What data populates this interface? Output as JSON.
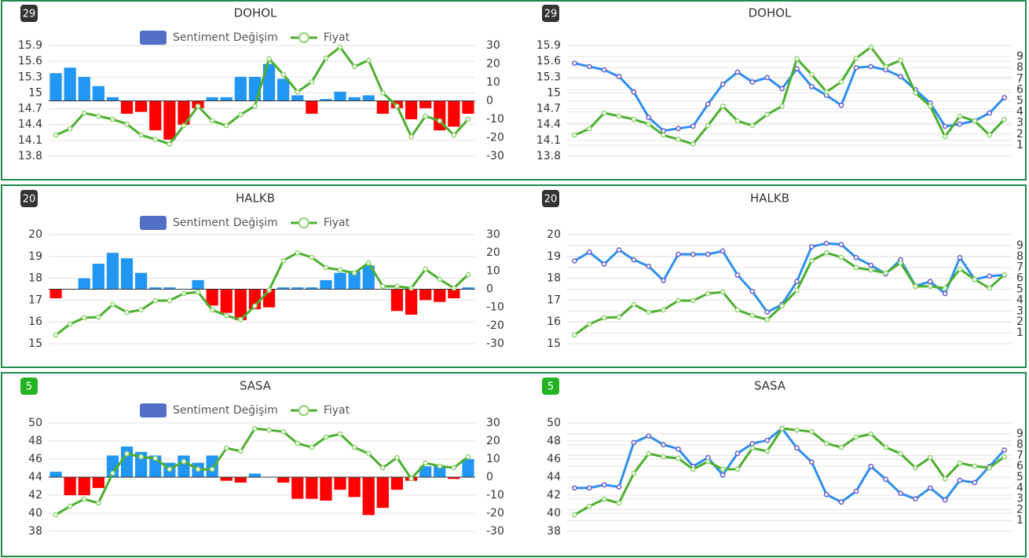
{
  "chart_data": [
    {
      "type": "bar",
      "badge": "29",
      "badge_color": "#333333",
      "title": "DOHOL",
      "ylim": [
        13.8,
        15.9
      ],
      "yticks": [
        13.8,
        14.1,
        14.4,
        14.7,
        15,
        15.3,
        15.6,
        15.9
      ],
      "y2lim": [
        -30,
        30
      ],
      "y2ticks": [
        -30,
        -20,
        -10,
        0,
        10,
        20,
        30
      ],
      "grid": true,
      "legend": "top",
      "series": [
        {
          "name": "Sentiment Değişim",
          "type": "bar",
          "axis": "y2",
          "color": "#5470c6",
          "positive_color": "#2196f3",
          "negative_color": "#ff0000",
          "values": [
            15,
            18,
            13,
            8,
            2,
            -7,
            -6,
            -16,
            -21,
            -13,
            -4,
            2,
            2,
            13,
            13,
            20,
            12,
            3,
            -7,
            1,
            5,
            2,
            3,
            -7,
            -4,
            -10,
            -4,
            -16,
            -14,
            -7
          ]
        },
        {
          "name": "Fiyat",
          "type": "line",
          "color": "#4caf2f",
          "marker_color": "#8fd46f",
          "values": [
            14.2,
            14.32,
            14.62,
            14.56,
            14.5,
            14.41,
            14.2,
            14.12,
            14.03,
            14.38,
            14.75,
            14.47,
            14.38,
            14.59,
            14.75,
            15.65,
            15.35,
            15.02,
            15.21,
            15.66,
            15.87,
            15.5,
            15.62,
            15.0,
            14.75,
            14.17,
            14.56,
            14.47,
            14.2,
            14.5
          ]
        }
      ]
    },
    {
      "type": "line",
      "badge": "29",
      "badge_color": "#333333",
      "title": "DOHOL",
      "ylim": [
        13.8,
        15.9
      ],
      "yticks": [
        13.8,
        14.1,
        14.4,
        14.7,
        15,
        15.3,
        15.6,
        15.9
      ],
      "y2lim": [
        0,
        10
      ],
      "y2ticks": [
        1,
        2,
        3,
        4,
        5,
        6,
        7,
        8,
        9
      ],
      "grid": true,
      "series": [
        {
          "type": "line",
          "axis": "y2",
          "color": "#2e8ff0",
          "marker_color": "#6a5acd",
          "values": [
            8.4,
            8.1,
            7.8,
            7.2,
            5.8,
            3.5,
            2.3,
            2.5,
            2.7,
            4.7,
            6.5,
            7.6,
            6.7,
            7.1,
            6.1,
            7.9,
            6.3,
            5.5,
            4.6,
            8.0,
            8.1,
            7.8,
            7.2,
            6.0,
            4.8,
            2.7,
            2.9,
            3.2,
            3.9,
            5.3
          ]
        },
        {
          "type": "line",
          "color": "#4caf2f",
          "marker_color": "#8fd46f",
          "values": [
            14.2,
            14.32,
            14.62,
            14.56,
            14.5,
            14.41,
            14.2,
            14.12,
            14.03,
            14.38,
            14.75,
            14.47,
            14.38,
            14.59,
            14.75,
            15.65,
            15.35,
            15.02,
            15.21,
            15.66,
            15.87,
            15.5,
            15.62,
            15.0,
            14.75,
            14.17,
            14.56,
            14.47,
            14.2,
            14.5
          ]
        }
      ]
    },
    {
      "type": "bar",
      "badge": "20",
      "badge_color": "#333333",
      "title": "HALKB",
      "ylim": [
        15,
        20
      ],
      "yticks": [
        15,
        16,
        17,
        18,
        19,
        20
      ],
      "y2lim": [
        -30,
        30
      ],
      "y2ticks": [
        -30,
        -20,
        -10,
        0,
        10,
        20,
        30
      ],
      "grid": true,
      "legend": "top",
      "series": [
        {
          "name": "Sentiment Değişim",
          "type": "bar",
          "axis": "y2",
          "color": "#5470c6",
          "positive_color": "#2196f3",
          "negative_color": "#ff0000",
          "values": [
            -5,
            0,
            6,
            14,
            20,
            17,
            9,
            1,
            1,
            0,
            5,
            -9,
            -13,
            -17,
            -11,
            -10,
            1,
            1,
            1,
            5,
            9,
            10,
            13,
            0,
            -12,
            -14,
            -6,
            -7,
            -5,
            1
          ]
        },
        {
          "name": "Fiyat",
          "type": "line",
          "color": "#4caf2f",
          "marker_color": "#8fd46f",
          "values": [
            15.4,
            15.9,
            16.19,
            16.22,
            16.8,
            16.44,
            16.55,
            16.98,
            16.98,
            17.3,
            17.37,
            16.55,
            16.29,
            16.11,
            16.73,
            17.45,
            18.81,
            19.17,
            18.96,
            18.49,
            18.38,
            18.24,
            18.71,
            17.63,
            17.63,
            17.55,
            18.42,
            17.95,
            17.55,
            18.17
          ]
        }
      ]
    },
    {
      "type": "line",
      "badge": "20",
      "badge_color": "#333333",
      "title": "HALKB",
      "ylim": [
        15,
        20
      ],
      "yticks": [
        15,
        16,
        17,
        18,
        19,
        20
      ],
      "y2lim": [
        0,
        10
      ],
      "y2ticks": [
        1,
        2,
        3,
        4,
        5,
        6,
        7,
        8,
        9
      ],
      "grid": true,
      "series": [
        {
          "type": "line",
          "axis": "y2",
          "color": "#2e8ff0",
          "marker_color": "#6a5acd",
          "values": [
            7.6,
            8.4,
            7.3,
            8.6,
            7.7,
            7.1,
            5.8,
            8.2,
            8.2,
            8.2,
            8.5,
            6.3,
            4.8,
            2.9,
            3.6,
            5.7,
            8.9,
            9.2,
            9.1,
            7.9,
            7.2,
            6.4,
            7.7,
            5.3,
            5.7,
            4.6,
            7.9,
            5.9,
            6.2,
            6.3
          ]
        },
        {
          "type": "line",
          "color": "#4caf2f",
          "marker_color": "#8fd46f",
          "values": [
            15.4,
            15.9,
            16.19,
            16.22,
            16.8,
            16.44,
            16.55,
            16.98,
            16.98,
            17.3,
            17.37,
            16.55,
            16.29,
            16.11,
            16.73,
            17.45,
            18.81,
            19.17,
            18.96,
            18.49,
            18.38,
            18.24,
            18.71,
            17.63,
            17.63,
            17.55,
            18.42,
            17.95,
            17.55,
            18.17
          ]
        }
      ]
    },
    {
      "type": "bar",
      "badge": "5",
      "badge_color": "#22b422",
      "title": "SASA",
      "ylim": [
        38,
        50
      ],
      "yticks": [
        38,
        40,
        42,
        44,
        46,
        48,
        50
      ],
      "y2lim": [
        -30,
        30
      ],
      "y2ticks": [
        -30,
        -20,
        -10,
        0,
        10,
        20,
        30
      ],
      "grid": true,
      "legend": "top",
      "series": [
        {
          "name": "Sentiment Değişim",
          "type": "bar",
          "axis": "y2",
          "color": "#5470c6",
          "positive_color": "#2196f3",
          "negative_color": "#ff0000",
          "values": [
            3,
            -10,
            -10,
            -6,
            12,
            17,
            14,
            12,
            8,
            12,
            8,
            12,
            -2,
            -3,
            2,
            0,
            -3,
            -12,
            -12,
            -13,
            -7,
            -11,
            -21,
            -17,
            -7,
            -2,
            6,
            6,
            -1,
            10
          ]
        },
        {
          "name": "Fiyat",
          "type": "line",
          "color": "#4caf2f",
          "marker_color": "#8fd46f",
          "values": [
            39.83,
            40.78,
            41.57,
            41.13,
            44.43,
            46.61,
            46.26,
            46.09,
            44.87,
            45.74,
            44.87,
            44.87,
            47.22,
            46.87,
            49.39,
            49.22,
            49.04,
            47.74,
            47.3,
            48.43,
            48.78,
            47.3,
            46.61,
            45.04,
            46.17,
            43.83,
            45.57,
            45.22,
            45.04,
            46.26
          ]
        }
      ]
    },
    {
      "type": "line",
      "badge": "5",
      "badge_color": "#22b422",
      "title": "SASA",
      "ylim": [
        38,
        50
      ],
      "yticks": [
        38,
        40,
        42,
        44,
        46,
        48,
        50
      ],
      "y2lim": [
        0,
        10
      ],
      "y2ticks": [
        1,
        2,
        3,
        4,
        5,
        6,
        7,
        8,
        9
      ],
      "grid": true,
      "series": [
        {
          "type": "line",
          "axis": "y2",
          "color": "#2e8ff0",
          "marker_color": "#6a5acd",
          "values": [
            4.0,
            4.0,
            4.3,
            4.1,
            8.2,
            8.8,
            8.0,
            7.6,
            6.0,
            6.8,
            5.2,
            7.2,
            8.1,
            8.4,
            9.5,
            7.7,
            6.4,
            3.4,
            2.7,
            3.7,
            6.0,
            4.8,
            3.5,
            3.0,
            4.0,
            2.9,
            4.7,
            4.5,
            6.0,
            7.5
          ]
        },
        {
          "type": "line",
          "color": "#4caf2f",
          "marker_color": "#8fd46f",
          "values": [
            39.83,
            40.78,
            41.57,
            41.13,
            44.43,
            46.61,
            46.26,
            46.09,
            44.87,
            45.74,
            44.87,
            44.87,
            47.22,
            46.87,
            49.39,
            49.22,
            49.04,
            47.74,
            47.3,
            48.43,
            48.78,
            47.3,
            46.61,
            45.04,
            46.17,
            43.83,
            45.57,
            45.22,
            45.04,
            46.26
          ]
        }
      ]
    }
  ]
}
